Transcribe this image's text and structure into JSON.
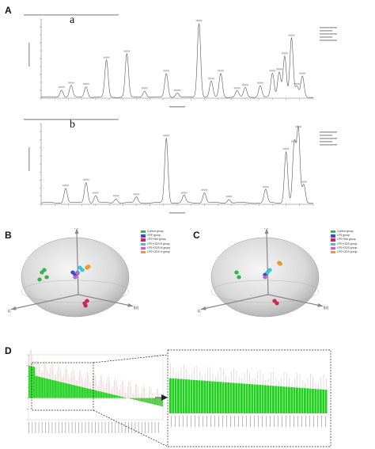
{
  "panels": {
    "A": {
      "letter": "A",
      "sub_a": "a",
      "sub_b": "b"
    },
    "B": {
      "letter": "B",
      "axes": [
        "t[1]",
        "t[2]",
        "t[3]"
      ],
      "legend": [
        {
          "label": "Control group",
          "color": "#2db84a"
        },
        {
          "label": "GPE group",
          "color": "#3a49d6"
        },
        {
          "label": "LPS+Sini group",
          "color": "#d8244a"
        },
        {
          "label": "LPS+GDS B group",
          "color": "#35c9e0"
        },
        {
          "label": "LPS+GDS M group",
          "color": "#c062d6"
        },
        {
          "label": "LPS+GDS H group",
          "color": "#f29a24"
        }
      ]
    },
    "C": {
      "letter": "C",
      "axes": [
        "t[1]",
        "t[2]",
        "t[3]"
      ],
      "legend": [
        {
          "label": "Control group",
          "color": "#2db84a"
        },
        {
          "label": "LPS group",
          "color": "#3a49d6"
        },
        {
          "label": "LPS+Sini group",
          "color": "#d8244a"
        },
        {
          "label": "LPS+GDS group",
          "color": "#35c9e0"
        },
        {
          "label": "LPS+GDS group",
          "color": "#c062d6"
        },
        {
          "label": "LPS+GDS group",
          "color": "#f29a24"
        }
      ]
    },
    "D": {
      "letter": "D"
    }
  },
  "chart_data": [
    {
      "type": "line",
      "panel": "A-a",
      "description_of_peaks_rt_min": [
        1.5,
        2.2,
        3.3,
        4.8,
        6.3,
        7.6,
        9.2,
        10.0,
        11.6,
        12.5,
        13.2,
        14.4,
        15.0,
        16.1,
        17.0,
        17.5,
        17.9,
        18.4,
        18.8,
        19.2
      ],
      "values": [
        14,
        22,
        20,
        70,
        82,
        12,
        45,
        8,
        140,
        30,
        45,
        12,
        18,
        22,
        45,
        48,
        78,
        112,
        20,
        40
      ],
      "xlim": [
        0,
        20
      ],
      "ylim": [
        0,
        150
      ]
    },
    {
      "type": "line",
      "panel": "A-b",
      "description_of_peaks_rt_min": [
        1.8,
        3.3,
        4.0,
        5.5,
        7.0,
        9.2,
        10.5,
        12.0,
        13.8,
        16.5,
        18.0,
        18.6,
        18.9,
        19.3
      ],
      "values": [
        20,
        28,
        10,
        6,
        8,
        88,
        10,
        14,
        5,
        18,
        70,
        80,
        100,
        25
      ],
      "xlim": [
        0,
        20
      ],
      "ylim": [
        0,
        110
      ]
    },
    {
      "type": "scatter",
      "panel": "B",
      "series": [
        {
          "name": "Control group",
          "values": [
            [
              -0.7,
              0.1
            ],
            [
              -0.6,
              0.0
            ],
            [
              -0.65,
              0.15
            ],
            [
              -0.75,
              -0.05
            ]
          ]
        },
        {
          "name": "GPE group",
          "values": [
            [
              -0.05,
              0.1
            ],
            [
              0.0,
              0.05
            ]
          ]
        },
        {
          "name": "LPS+Sini group",
          "values": [
            [
              0.2,
              -0.55
            ],
            [
              0.25,
              -0.5
            ],
            [
              0.22,
              -0.6
            ]
          ]
        },
        {
          "name": "LPS+GDS B group",
          "values": [
            [
              0.05,
              0.1
            ],
            [
              0.1,
              0.2
            ],
            [
              0.15,
              0.15
            ]
          ]
        },
        {
          "name": "LPS+GDS M group",
          "values": [
            [
              0.0,
              0.0
            ],
            [
              0.05,
              0.08
            ]
          ]
        },
        {
          "name": "LPS+GDS H group",
          "values": [
            [
              0.25,
              0.2
            ],
            [
              0.28,
              0.22
            ]
          ]
        }
      ]
    },
    {
      "type": "scatter",
      "panel": "C",
      "series": [
        {
          "name": "Control group",
          "values": [
            [
              -0.6,
              0.1
            ],
            [
              -0.55,
              0.0
            ]
          ]
        },
        {
          "name": "LPS group",
          "values": [
            [
              0.0,
              0.05
            ]
          ]
        },
        {
          "name": "LPS+Sini group",
          "values": [
            [
              0.2,
              -0.5
            ],
            [
              0.25,
              -0.55
            ]
          ]
        },
        {
          "name": "LPS+GDS group",
          "values": [
            [
              0.05,
              0.1
            ],
            [
              0.1,
              0.15
            ]
          ]
        },
        {
          "name": "LPS+GDS group",
          "values": [
            [
              0.0,
              0.0
            ]
          ]
        },
        {
          "name": "LPS+GDS group",
          "values": [
            [
              0.3,
              0.3
            ],
            [
              0.32,
              0.28
            ]
          ]
        }
      ]
    },
    {
      "type": "bar",
      "panel": "D",
      "ylim": [
        -0.5,
        1.0
      ],
      "left_values_count": 120,
      "right_values_count": 60
    }
  ]
}
